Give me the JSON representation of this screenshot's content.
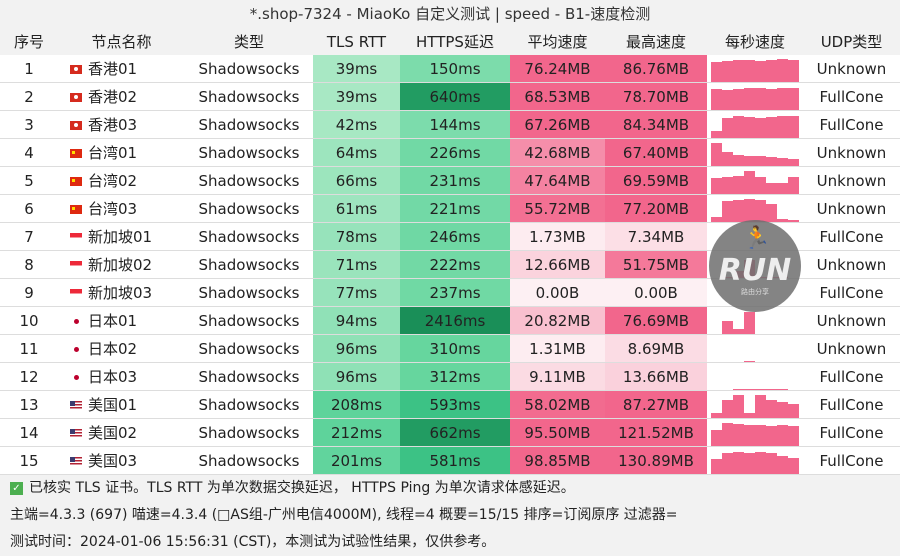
{
  "title": "*.shop-7324 - MiaoKo 自定义测试 | speed - B1-速度检测",
  "headers": [
    "序号",
    "节点名称",
    "类型",
    "TLS RTT",
    "HTTPS延迟",
    "平均速度",
    "最高速度",
    "每秒速度",
    "UDP类型"
  ],
  "rows": [
    {
      "idx": "1",
      "flag": "hk",
      "name": "香港01",
      "type": "Shadowsocks",
      "tls": "39ms",
      "https": "150ms",
      "avg": "76.24MB",
      "max": "86.76MB",
      "bars": [
        0.85,
        0.9,
        0.95,
        0.95,
        0.9,
        0.95,
        1,
        0.95
      ],
      "udp": "Unknown"
    },
    {
      "idx": "2",
      "flag": "hk",
      "name": "香港02",
      "type": "Shadowsocks",
      "tls": "39ms",
      "https": "640ms",
      "avg": "68.53MB",
      "max": "78.70MB",
      "bars": [
        0.9,
        0.85,
        0.9,
        0.95,
        0.95,
        0.9,
        0.95,
        0.95
      ],
      "udp": "FullCone"
    },
    {
      "idx": "3",
      "flag": "hk",
      "name": "香港03",
      "type": "Shadowsocks",
      "tls": "42ms",
      "https": "144ms",
      "avg": "67.26MB",
      "max": "84.34MB",
      "bars": [
        0.3,
        0.85,
        0.95,
        0.9,
        0.85,
        0.9,
        0.95,
        0.95
      ],
      "udp": "FullCone"
    },
    {
      "idx": "4",
      "flag": "cn",
      "name": "台湾01",
      "type": "Shadowsocks",
      "tls": "64ms",
      "https": "226ms",
      "avg": "42.68MB",
      "max": "67.40MB",
      "bars": [
        1,
        0.6,
        0.5,
        0.45,
        0.45,
        0.4,
        0.35,
        0.3
      ],
      "udp": "Unknown"
    },
    {
      "idx": "5",
      "flag": "cn",
      "name": "台湾02",
      "type": "Shadowsocks",
      "tls": "66ms",
      "https": "231ms",
      "avg": "47.64MB",
      "max": "69.59MB",
      "bars": [
        0.7,
        0.75,
        0.8,
        1,
        0.75,
        0.5,
        0.5,
        0.75
      ],
      "udp": "Unknown"
    },
    {
      "idx": "6",
      "flag": "cn",
      "name": "台湾03",
      "type": "Shadowsocks",
      "tls": "61ms",
      "https": "221ms",
      "avg": "55.72MB",
      "max": "77.20MB",
      "bars": [
        0.2,
        0.9,
        0.95,
        1,
        0.95,
        0.8,
        0.15,
        0.1
      ],
      "udp": "Unknown"
    },
    {
      "idx": "7",
      "flag": "sg",
      "name": "新加坡01",
      "type": "Shadowsocks",
      "tls": "78ms",
      "https": "246ms",
      "avg": "1.73MB",
      "max": "7.34MB",
      "bars": [
        0,
        0,
        0,
        0,
        0,
        0,
        0,
        0
      ],
      "udp": "FullCone"
    },
    {
      "idx": "8",
      "flag": "sg",
      "name": "新加坡02",
      "type": "Shadowsocks",
      "tls": "71ms",
      "https": "222ms",
      "avg": "12.66MB",
      "max": "51.75MB",
      "bars": [
        0,
        0.05,
        0.3,
        0.8,
        0.05,
        0.05,
        0.03,
        0
      ],
      "udp": "Unknown"
    },
    {
      "idx": "9",
      "flag": "sg",
      "name": "新加坡03",
      "type": "Shadowsocks",
      "tls": "77ms",
      "https": "237ms",
      "avg": "0.00B",
      "max": "0.00B",
      "bars": [
        0,
        0,
        0,
        0,
        0,
        0,
        0,
        0
      ],
      "udp": "FullCone"
    },
    {
      "idx": "10",
      "flag": "jp",
      "name": "日本01",
      "type": "Shadowsocks",
      "tls": "94ms",
      "https": "2416ms",
      "avg": "20.82MB",
      "max": "76.69MB",
      "bars": [
        0,
        0.55,
        0.2,
        0.95,
        0,
        0,
        0,
        0
      ],
      "udp": "Unknown"
    },
    {
      "idx": "11",
      "flag": "jp",
      "name": "日本02",
      "type": "Shadowsocks",
      "tls": "96ms",
      "https": "310ms",
      "avg": "1.31MB",
      "max": "8.69MB",
      "bars": [
        0,
        0,
        0,
        0.05,
        0,
        0,
        0,
        0
      ],
      "udp": "Unknown"
    },
    {
      "idx": "12",
      "flag": "jp",
      "name": "日本03",
      "type": "Shadowsocks",
      "tls": "96ms",
      "https": "312ms",
      "avg": "9.11MB",
      "max": "13.66MB",
      "bars": [
        0,
        0,
        0.05,
        0.05,
        0.05,
        0.05,
        0.05,
        0
      ],
      "udp": "FullCone"
    },
    {
      "idx": "13",
      "flag": "us",
      "name": "美国01",
      "type": "Shadowsocks",
      "tls": "208ms",
      "https": "593ms",
      "avg": "58.02MB",
      "max": "87.27MB",
      "bars": [
        0.2,
        0.8,
        1,
        0.2,
        1,
        0.8,
        0.7,
        0.6
      ],
      "udp": "FullCone"
    },
    {
      "idx": "14",
      "flag": "us",
      "name": "美国02",
      "type": "Shadowsocks",
      "tls": "212ms",
      "https": "662ms",
      "avg": "95.50MB",
      "max": "121.52MB",
      "bars": [
        0.7,
        1,
        0.95,
        0.9,
        0.9,
        0.85,
        0.9,
        0.85
      ],
      "udp": "FullCone"
    },
    {
      "idx": "15",
      "flag": "us",
      "name": "美国03",
      "type": "Shadowsocks",
      "tls": "201ms",
      "https": "581ms",
      "avg": "98.85MB",
      "max": "130.89MB",
      "bars": [
        0.65,
        0.9,
        0.95,
        0.9,
        0.95,
        0.9,
        0.8,
        0.7
      ],
      "udp": "FullCone"
    }
  ],
  "footer": {
    "line1": "已核实 TLS 证书。TLS RTT 为单次数据交换延迟， HTTPS Ping 为单次请求体感延迟。",
    "line2": "主端=4.3.3 (697) 喵速=4.3.4 (□AS组-广州电信4000M), 线程=4 概要=15/15 排序=订阅原序 过滤器=",
    "line3": "测试时间：2024-01-06 15:56:31 (CST)，本测试为试验性结果，仅供参考。"
  },
  "logo": {
    "text": "RUN",
    "sub": "路由分享"
  },
  "colors": {
    "pink": "#f2668c",
    "green_light": "#a8e8c4",
    "green_dark": "#1a8f58"
  }
}
